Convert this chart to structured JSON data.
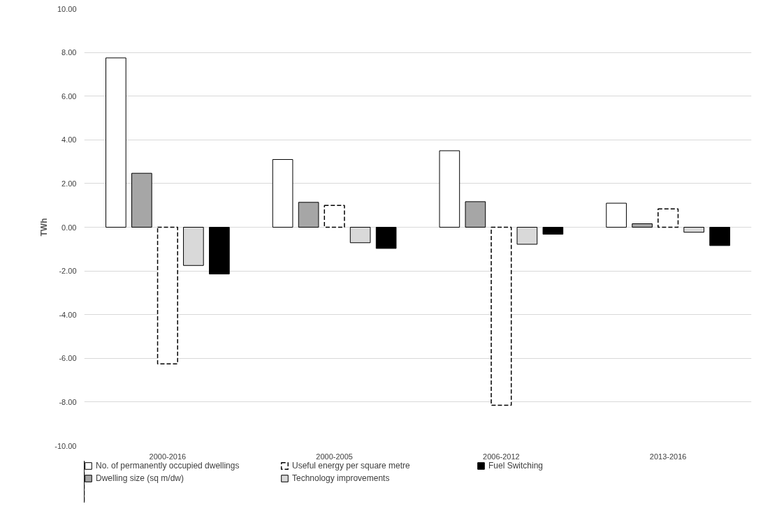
{
  "chart_data": {
    "type": "bar",
    "ylabel": "TWh",
    "categories": [
      "2000-2016",
      "2000-2005",
      "2006-2012",
      "2013-2016"
    ],
    "series": [
      {
        "name": "No. of permanently occupied dwellings",
        "color": "#ffffff",
        "values": [
          7.75,
          3.1,
          3.5,
          1.1
        ]
      },
      {
        "name": "Dwelling size (sq m/dw)",
        "color": "#a6a6a6",
        "values": [
          2.47,
          1.14,
          1.17,
          0.16
        ]
      },
      {
        "name": "Useful energy per square metre",
        "color": "#ffffff",
        "line_style": "dashed",
        "values": [
          -6.25,
          1.0,
          -8.15,
          0.84
        ]
      },
      {
        "name": "Technology improvements",
        "color": "#d9d9d9",
        "values": [
          -1.75,
          -0.71,
          -0.78,
          -0.23
        ]
      },
      {
        "name": "Fuel Switching",
        "color": "#000000",
        "values": [
          -2.14,
          -0.97,
          -0.32,
          -0.84
        ]
      }
    ],
    "ylim": [
      -10,
      10
    ],
    "yticks": [
      {
        "value": -10,
        "label": "-10.00"
      },
      {
        "value": -8,
        "label": "-8.00"
      },
      {
        "value": -6,
        "label": "-6.00"
      },
      {
        "value": -4,
        "label": "-4.00"
      },
      {
        "value": -2,
        "label": "-2.00"
      },
      {
        "value": 0,
        "label": "0.00"
      },
      {
        "value": 2,
        "label": "2.00"
      },
      {
        "value": 4,
        "label": "4.00"
      },
      {
        "value": 6,
        "label": "6.00"
      },
      {
        "value": 8,
        "label": "8.00"
      },
      {
        "value": 10,
        "label": "10.00"
      }
    ],
    "grid": "y",
    "legend": "bottom"
  }
}
